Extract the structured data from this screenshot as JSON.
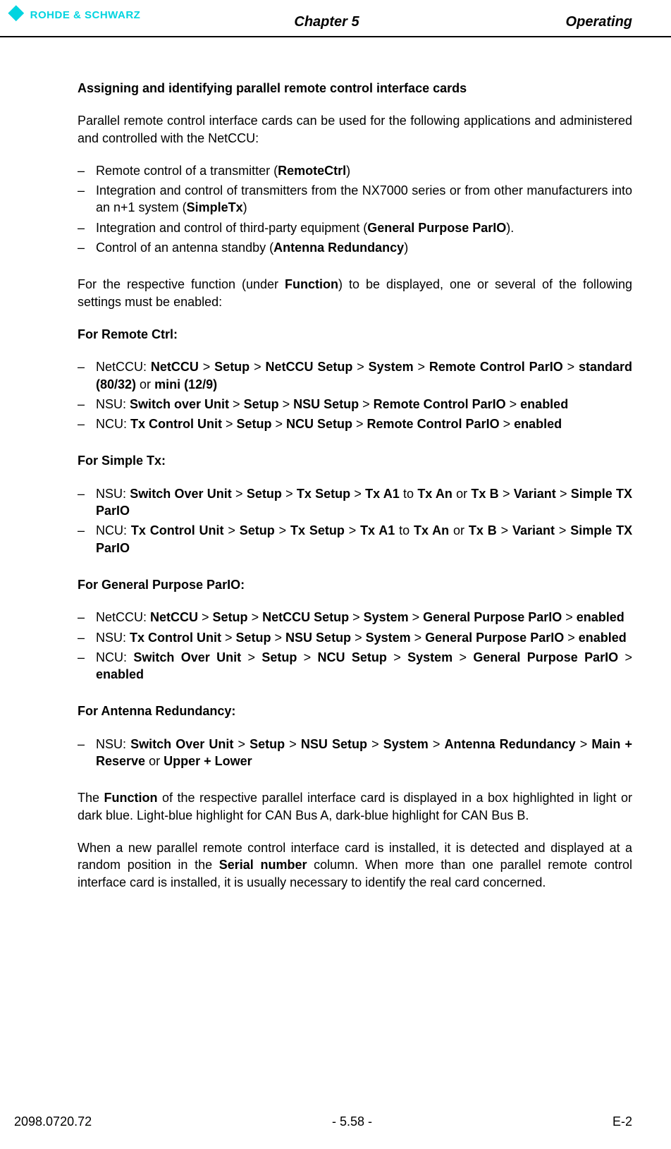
{
  "header": {
    "logo_text": "ROHDE & SCHWARZ",
    "chapter": "Chapter 5",
    "section": "Operating"
  },
  "content": {
    "title": "Assigning and identifying parallel remote control interface cards",
    "intro": "Parallel remote control interface cards can be used for the following applications and administered and controlled with the NetCCU:",
    "apps": {
      "i1_a": "Remote control of a transmitter (",
      "i1_b": "RemoteCtrl",
      "i1_c": ")",
      "i2_a": "Integration and control of transmitters from the NX7000 series or from other manufacturers into an n+1 system (",
      "i2_b": "SimpleTx",
      "i2_c": ")",
      "i3_a": "Integration and control of third-party equipment (",
      "i3_b": "General Purpose ParIO",
      "i3_c": ").",
      "i4_a": "Control of an antenna standby (",
      "i4_b": "Antenna Redundancy",
      "i4_c": ")"
    },
    "function_intro_a": "For the respective function (under ",
    "function_intro_b": "Function",
    "function_intro_c": ") to be displayed, one or several of the following settings must be enabled:",
    "remote_ctrl": {
      "heading": "For Remote Ctrl:",
      "i1_a": "NetCCU: ",
      "i1_b": "NetCCU",
      "i1_c": "Setup",
      "i1_d": "NetCCU Setup",
      "i1_e": "System",
      "i1_f": "Remote Control ParIO",
      "i1_g": "standard (80/32)",
      "i1_h": " or ",
      "i1_i": "mini (12/9)",
      "i2_a": "NSU: ",
      "i2_b": "Switch over Unit",
      "i2_c": "Setup",
      "i2_d": "NSU Setup",
      "i2_e": "Remote Control ParIO",
      "i2_f": "enabled",
      "i3_a": "NCU: ",
      "i3_b": "Tx Control Unit",
      "i3_c": "Setup",
      "i3_d": "NCU Setup",
      "i3_e": "Remote Control ParIO",
      "i3_f": "enabled"
    },
    "simple_tx": {
      "heading": "For Simple Tx:",
      "i1_a": "NSU: ",
      "i1_b": "Switch Over Unit",
      "i1_c": "Setup",
      "i1_d": "Tx Setup",
      "i1_e": "Tx A1",
      "i1_f": " to ",
      "i1_g": "Tx An",
      "i1_h": " or ",
      "i1_i": "Tx B",
      "i1_j": "Variant",
      "i1_k": "Simple TX ParIO",
      "i2_a": "NCU: ",
      "i2_b": "Tx Control Unit",
      "i2_c": "Setup",
      "i2_d": "Tx Setup",
      "i2_e": "Tx A1",
      "i2_f": " to ",
      "i2_g": "Tx An",
      "i2_h": " or ",
      "i2_i": "Tx B",
      "i2_j": "Variant",
      "i2_k": "Simple TX ParIO"
    },
    "gp_pario": {
      "heading": "For General Purpose ParIO:",
      "i1_a": "NetCCU: ",
      "i1_b": "NetCCU",
      "i1_c": "Setup",
      "i1_d": "NetCCU Setup",
      "i1_e": "System",
      "i1_f": "General Purpose ParIO",
      "i1_g": "enabled",
      "i2_a": "NSU: ",
      "i2_b": "Tx Control Unit",
      "i2_c": "Setup",
      "i2_d": "NSU Setup",
      "i2_e": "System",
      "i2_f": "General Purpose ParIO",
      "i2_g": "enabled",
      "i3_a": "NCU: ",
      "i3_b": "Switch Over Unit",
      "i3_c": "Setup",
      "i3_d": "NCU Setup",
      "i3_e": "System",
      "i3_f": "General Purpose ParIO",
      "i3_g": "enabled"
    },
    "ant_red": {
      "heading": "For Antenna Redundancy:",
      "i1_a": "NSU: ",
      "i1_b": "Switch Over Unit",
      "i1_c": "Setup",
      "i1_d": "NSU Setup",
      "i1_e": "System",
      "i1_f": "Antenna Redundancy",
      "i1_g": "Main + Reserve",
      "i1_h": " or ",
      "i1_i": "Upper + Lower"
    },
    "closing_1_a": "The ",
    "closing_1_b": "Function",
    "closing_1_c": " of the respective parallel interface card is displayed in a box highlighted in light or dark blue. Light-blue highlight for CAN Bus A, dark-blue highlight for CAN Bus B.",
    "closing_2_a": "When a new parallel remote control interface card is installed, it is detected and displayed at a random position in the ",
    "closing_2_b": "Serial number",
    "closing_2_c": " column. When more than one parallel remote control interface card is installed, it is usually necessary to identify the real card concerned."
  },
  "footer": {
    "left": "2098.0720.72",
    "center": "- 5.58 -",
    "right": "E-2"
  },
  "gt": " > "
}
